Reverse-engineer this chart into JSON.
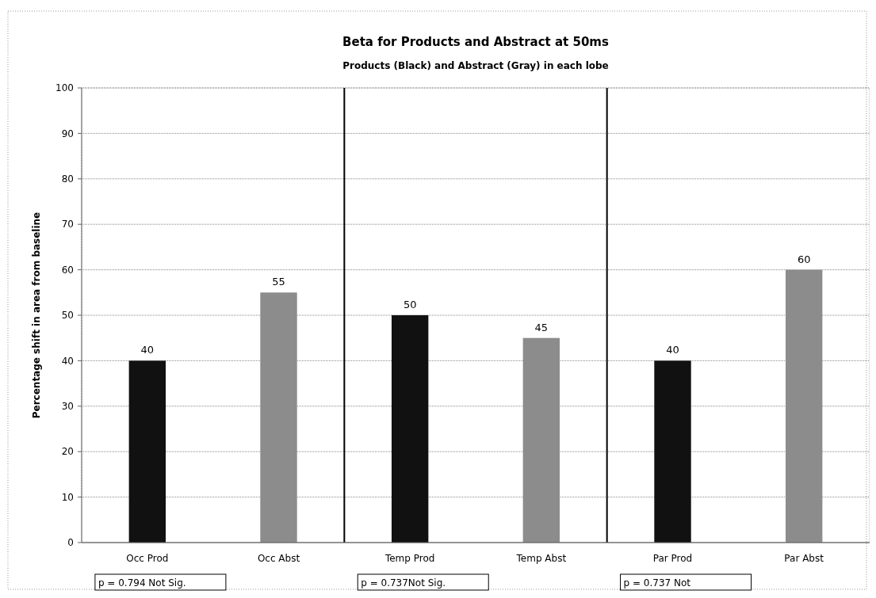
{
  "chart_data": {
    "type": "bar",
    "title": "Beta for Products and Abstract at 50ms",
    "subtitle": "Products (Black) and Abstract (Gray) in each lobe",
    "ylabel": "Percentage shift in area from baseline",
    "categories": [
      "Occ Prod",
      "Occ Abst",
      "Temp Prod",
      "Temp Abst",
      "Par Prod",
      "Par Abst"
    ],
    "values": [
      40,
      55,
      50,
      45,
      40,
      60
    ],
    "colors": [
      "#111111",
      "#8c8c8c",
      "#111111",
      "#8c8c8c",
      "#111111",
      "#8c8c8c"
    ],
    "ylim": [
      0,
      100
    ],
    "yticks": [
      0,
      10,
      20,
      30,
      40,
      50,
      60,
      70,
      80,
      90,
      100
    ],
    "grid": "y",
    "data_labels": true,
    "annotations": [
      "p = 0.794 Not Sig.",
      "p = 0.737Not Sig.",
      "p = 0.737 Not"
    ]
  }
}
